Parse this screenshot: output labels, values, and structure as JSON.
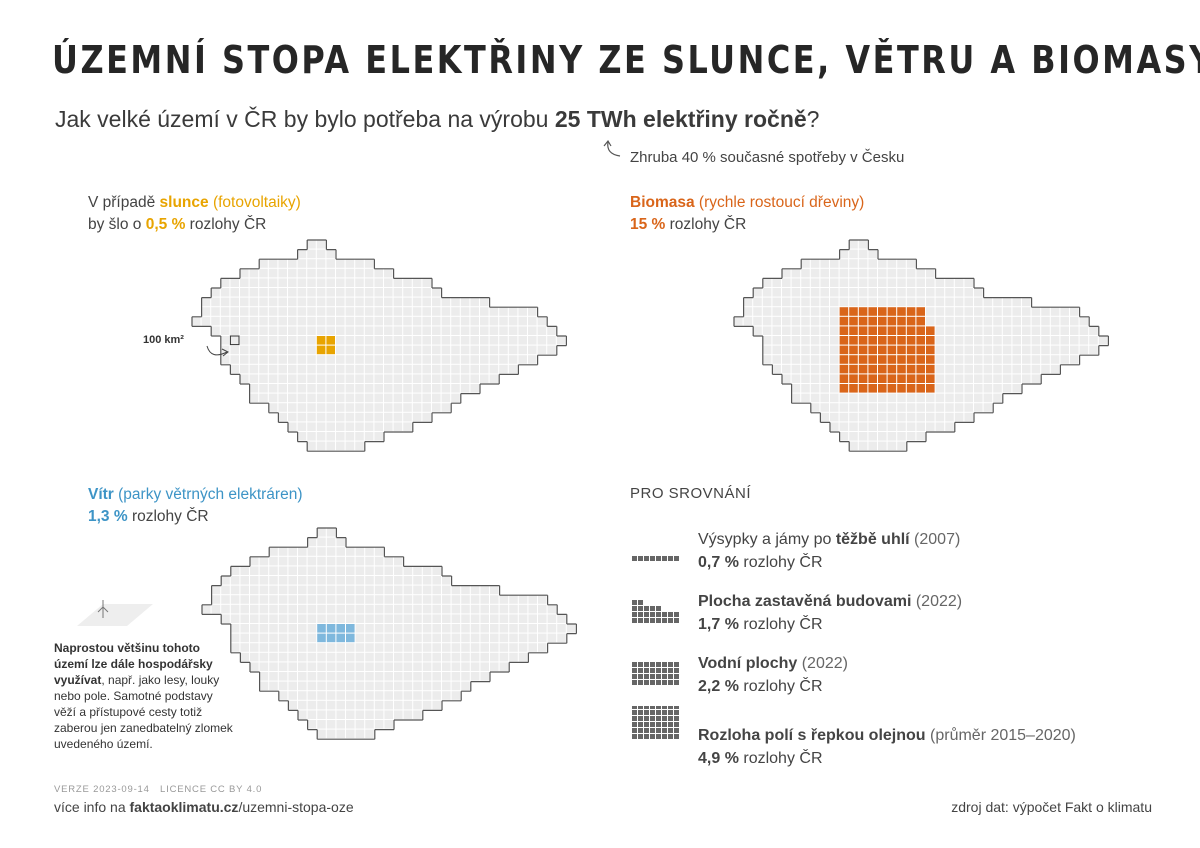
{
  "title": "ÚZEMNÍ STOPA ELEKTŘINY ZE SLUNCE, VĚTRU A BIOMASY",
  "subtitle": {
    "prefix": "Jak velké území v ČR by bylo potřeba na výrobu ",
    "highlight": "25 TWh elektřiny ročně",
    "suffix": "?"
  },
  "note": "Zhruba 40 % současné spotřeby v Česku",
  "panels": {
    "sun": {
      "line1_prefix": "V případě ",
      "keyword": "slunce",
      "keyword_detail": " (fotovoltaiky)",
      "line2_prefix": "by šlo o ",
      "value": "0,5 %",
      "line2_suffix": " rozlohy ČR",
      "cells": 4,
      "share_percent": 0.5,
      "color": "#e8a400"
    },
    "biomass": {
      "keyword": "Biomasa",
      "keyword_detail": " (rychle rostoucí dřeviny)",
      "value": "15 %",
      "value_suffix": " rozlohy ČR",
      "share_percent": 15,
      "color": "#d9651a"
    },
    "wind": {
      "keyword": "Vítr",
      "keyword_detail": " (parky větrných elektráren)",
      "value": "1,3 %",
      "value_suffix": " rozlohy ČR",
      "share_percent": 1.3,
      "color": "#7fb8dd",
      "note": {
        "bold": "Naprostou většinu tohoto území lze dále hospodářsky využívat",
        "rest": ", např. jako lesy, louky nebo pole. Samotné podstavy věží a přístupové cesty totiž zaberou jen zanedbatelný zlomek uvedeného území."
      }
    }
  },
  "scale_label": "100 km²",
  "comparison": {
    "title": "PRO SROVNÁNÍ",
    "items": [
      {
        "pre": "Výsypky a jámy po ",
        "bold": "těžbě uhlí",
        "post": " (2007)",
        "value": "0,7 %",
        "suffix": " rozlohy ČR",
        "share_percent": 0.7
      },
      {
        "pre": "",
        "bold": "Plocha zastavěná budovami",
        "post": " (2022)",
        "value": "1,7 %",
        "suffix": " rozlohy ČR",
        "share_percent": 1.7
      },
      {
        "pre": "",
        "bold": "Vodní plochy",
        "post": " (2022)",
        "value": "2,2 %",
        "suffix": " rozlohy ČR",
        "share_percent": 2.2
      },
      {
        "pre": "",
        "bold": "Rozloha polí s řepkou olejnou",
        "post": " (průměr 2015–2020)",
        "value": "4,9 %",
        "suffix": " rozlohy ČR",
        "share_percent": 4.9
      }
    ]
  },
  "footer": {
    "version": "VERZE 2023-09-14",
    "license": "LICENCE CC BY 4.0",
    "info_prefix": "více info na ",
    "info_domain": "faktaoklimatu.cz",
    "info_path": "/uzemni-stopa-oze",
    "source": "zdroj dat: výpočet Fakt o klimatu"
  },
  "colors": {
    "map_fill": "#ececec",
    "map_grid": "#ffffff",
    "map_outline": "#555555",
    "comparison_cells": "#666666"
  }
}
